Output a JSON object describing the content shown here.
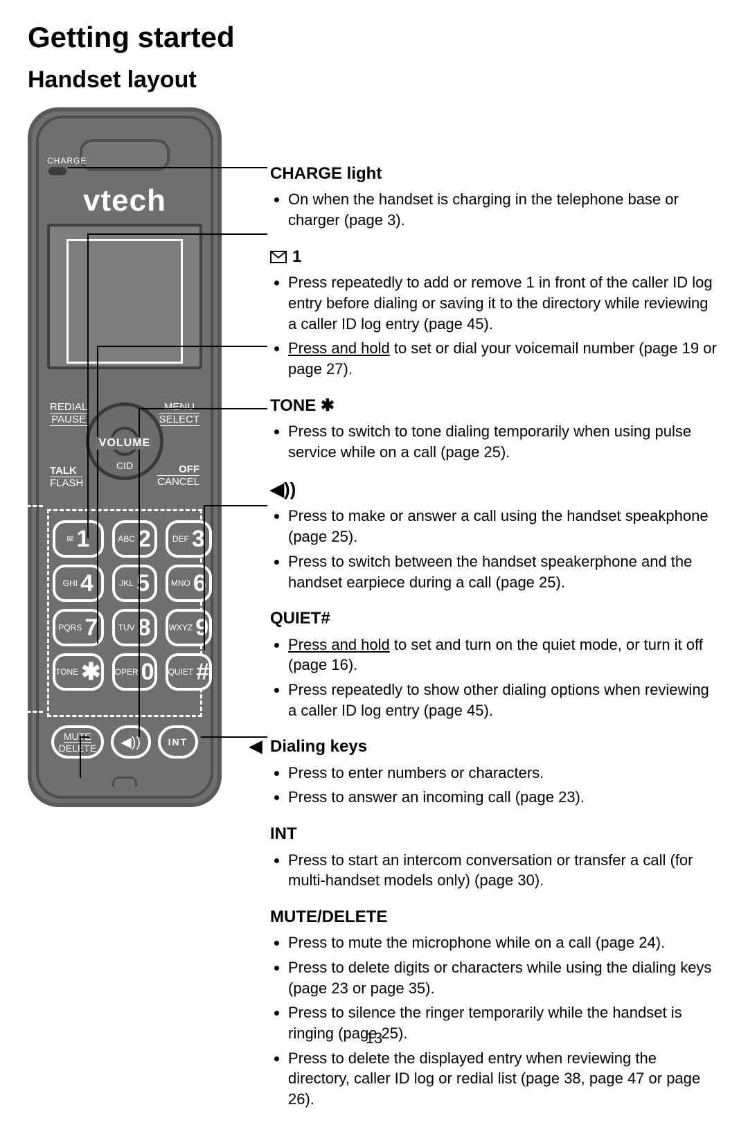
{
  "headings": {
    "h1": "Getting started",
    "h2": "Handset layout"
  },
  "handset": {
    "charge_label": "CHARGE",
    "brand": "vtech",
    "softkeys": {
      "left_top": "REDIAL",
      "left_bottom": "PAUSE",
      "right_top": "MENU",
      "right_bottom": "SELECT"
    },
    "volume_label": "VOLUME",
    "cid_label": "CID",
    "talk": {
      "row1": "TALK",
      "row2": "FLASH"
    },
    "off": {
      "row1": "OFF",
      "row2": "CANCEL"
    },
    "keys": [
      {
        "small": "",
        "big": "1",
        "prefix_icon": "mail"
      },
      {
        "small": "ABC",
        "big": "2"
      },
      {
        "small": "DEF",
        "big": "3"
      },
      {
        "small": "GHI",
        "big": "4"
      },
      {
        "small": "JKL",
        "big": "5"
      },
      {
        "small": "MNO",
        "big": "6"
      },
      {
        "small": "PQRS",
        "big": "7"
      },
      {
        "small": "TUV",
        "big": "8"
      },
      {
        "small": "WXYZ",
        "big": "9"
      },
      {
        "small": "TONE",
        "big": "✱"
      },
      {
        "small": "OPER",
        "big": "0"
      },
      {
        "small": "QUIET",
        "big": "#"
      }
    ],
    "bottom": {
      "mute1": "MUTE",
      "mute2": "DELETE",
      "speaker": "◀))",
      "int": "INT"
    }
  },
  "callouts": [
    {
      "id": "charge",
      "title": "CHARGE light",
      "items": [
        "On when the handset is charging in the telephone base or charger (page 3)."
      ]
    },
    {
      "id": "mail1",
      "title_icon": "mail",
      "title": "1",
      "items": [
        "Press repeatedly to add or remove 1 in front of the caller ID log entry before dialing or saving it to the directory while reviewing a caller ID log entry (page 45).",
        "<u>Press and hold</u> to set or dial your voicemail number (page 19 or page 27)."
      ]
    },
    {
      "id": "tone",
      "title": "TONE ✱",
      "items": [
        "Press to switch to tone dialing temporarily when using pulse service while on a call (page 25)."
      ]
    },
    {
      "id": "speaker",
      "title_icon": "speaker",
      "title": "",
      "items": [
        "Press to make or answer a call using the handset speakphone (page 25).",
        "Press to switch between the handset speakerphone and the handset earpiece during a call (page 25)."
      ]
    },
    {
      "id": "quiet",
      "title": "QUIET#",
      "items": [
        "<u>Press and hold</u> to set and turn on the quiet mode, or turn it off (page 16).",
        "Press repeatedly to show other dialing options when reviewing a caller ID log entry (page 45)."
      ]
    },
    {
      "id": "dialing",
      "title_icon": "arrow-left",
      "title": "Dialing keys",
      "items": [
        "Press to enter numbers or characters.",
        "Press to answer an incoming call (page 23)."
      ]
    },
    {
      "id": "int",
      "title": "INT",
      "items": [
        "Press to start an intercom conversation or transfer a call (for multi-handset models only) (page 30)."
      ]
    },
    {
      "id": "mute",
      "title": "MUTE/DELETE",
      "items": [
        "Press to mute the microphone while on a call (page 24).",
        "Press to delete digits or characters while using the dialing keys (page 23 or page 35).",
        "Press to silence the ringer temporarily while the handset is ringing (page 25).",
        "Press to delete the displayed entry when reviewing the directory, caller ID log or redial list (page 38, page 47 or page 26)."
      ]
    }
  ],
  "page_number": "13",
  "colors": {
    "handset_body": "#6f6f6f",
    "handset_border": "#5a5a5a",
    "key_border": "#ffffff",
    "text": "#000000"
  }
}
